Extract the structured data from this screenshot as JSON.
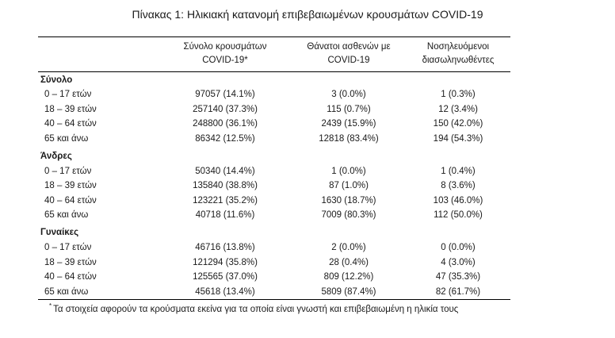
{
  "title": "Πίνακας 1: Ηλικιακή κατανομή επιβεβαιωμένων κρουσμάτων COVID-19",
  "headers": {
    "col1": [
      "Σύνολο κρουσμάτων",
      "COVID-19*"
    ],
    "col2": [
      "Θάνατοι ασθενών με",
      "COVID-19"
    ],
    "col3": [
      "Νοσηλευόμενοι",
      "διασωληνωθέντες"
    ]
  },
  "groups": [
    {
      "name": "Σύνολο",
      "rows": [
        {
          "age": "0 – 17 ετών",
          "cases": "97057 (14.1%)",
          "deaths": "3 (0.0%)",
          "intubated": "1 (0.3%)"
        },
        {
          "age": "18 – 39 ετών",
          "cases": "257140 (37.3%)",
          "deaths": "115 (0.7%)",
          "intubated": "12 (3.4%)"
        },
        {
          "age": "40 – 64 ετών",
          "cases": "248800 (36.1%)",
          "deaths": "2439 (15.9%)",
          "intubated": "150 (42.0%)"
        },
        {
          "age": "65 και άνω",
          "cases": "86342 (12.5%)",
          "deaths": "12818 (83.4%)",
          "intubated": "194 (54.3%)"
        }
      ]
    },
    {
      "name": "Άνδρες",
      "rows": [
        {
          "age": "0 – 17 ετών",
          "cases": "50340 (14.4%)",
          "deaths": "1 (0.0%)",
          "intubated": "1 (0.4%)"
        },
        {
          "age": "18 – 39 ετών",
          "cases": "135840 (38.8%)",
          "deaths": "87 (1.0%)",
          "intubated": "8 (3.6%)"
        },
        {
          "age": "40 – 64 ετών",
          "cases": "123221 (35.2%)",
          "deaths": "1630 (18.7%)",
          "intubated": "103 (46.0%)"
        },
        {
          "age": "65 και άνω",
          "cases": "40718 (11.6%)",
          "deaths": "7009 (80.3%)",
          "intubated": "112 (50.0%)"
        }
      ]
    },
    {
      "name": "Γυναίκες",
      "rows": [
        {
          "age": "0 – 17 ετών",
          "cases": "46716 (13.8%)",
          "deaths": "2 (0.0%)",
          "intubated": "0 (0.0%)"
        },
        {
          "age": "18 – 39 ετών",
          "cases": "121294 (35.8%)",
          "deaths": "28 (0.4%)",
          "intubated": "4 (3.0%)"
        },
        {
          "age": "40 – 64 ετών",
          "cases": "125565 (37.0%)",
          "deaths": "809 (12.2%)",
          "intubated": "47 (35.3%)"
        },
        {
          "age": "65 και άνω",
          "cases": "45618 (13.4%)",
          "deaths": "5809 (87.4%)",
          "intubated": "82 (61.7%)"
        }
      ]
    }
  ],
  "footnote": {
    "mark": "*",
    "text": "Τα στοιχεία αφορούν τα κρούσματα εκείνα για τα οποία είναι γνωστή και επιβεβαιωμένη η ηλικία τους"
  }
}
